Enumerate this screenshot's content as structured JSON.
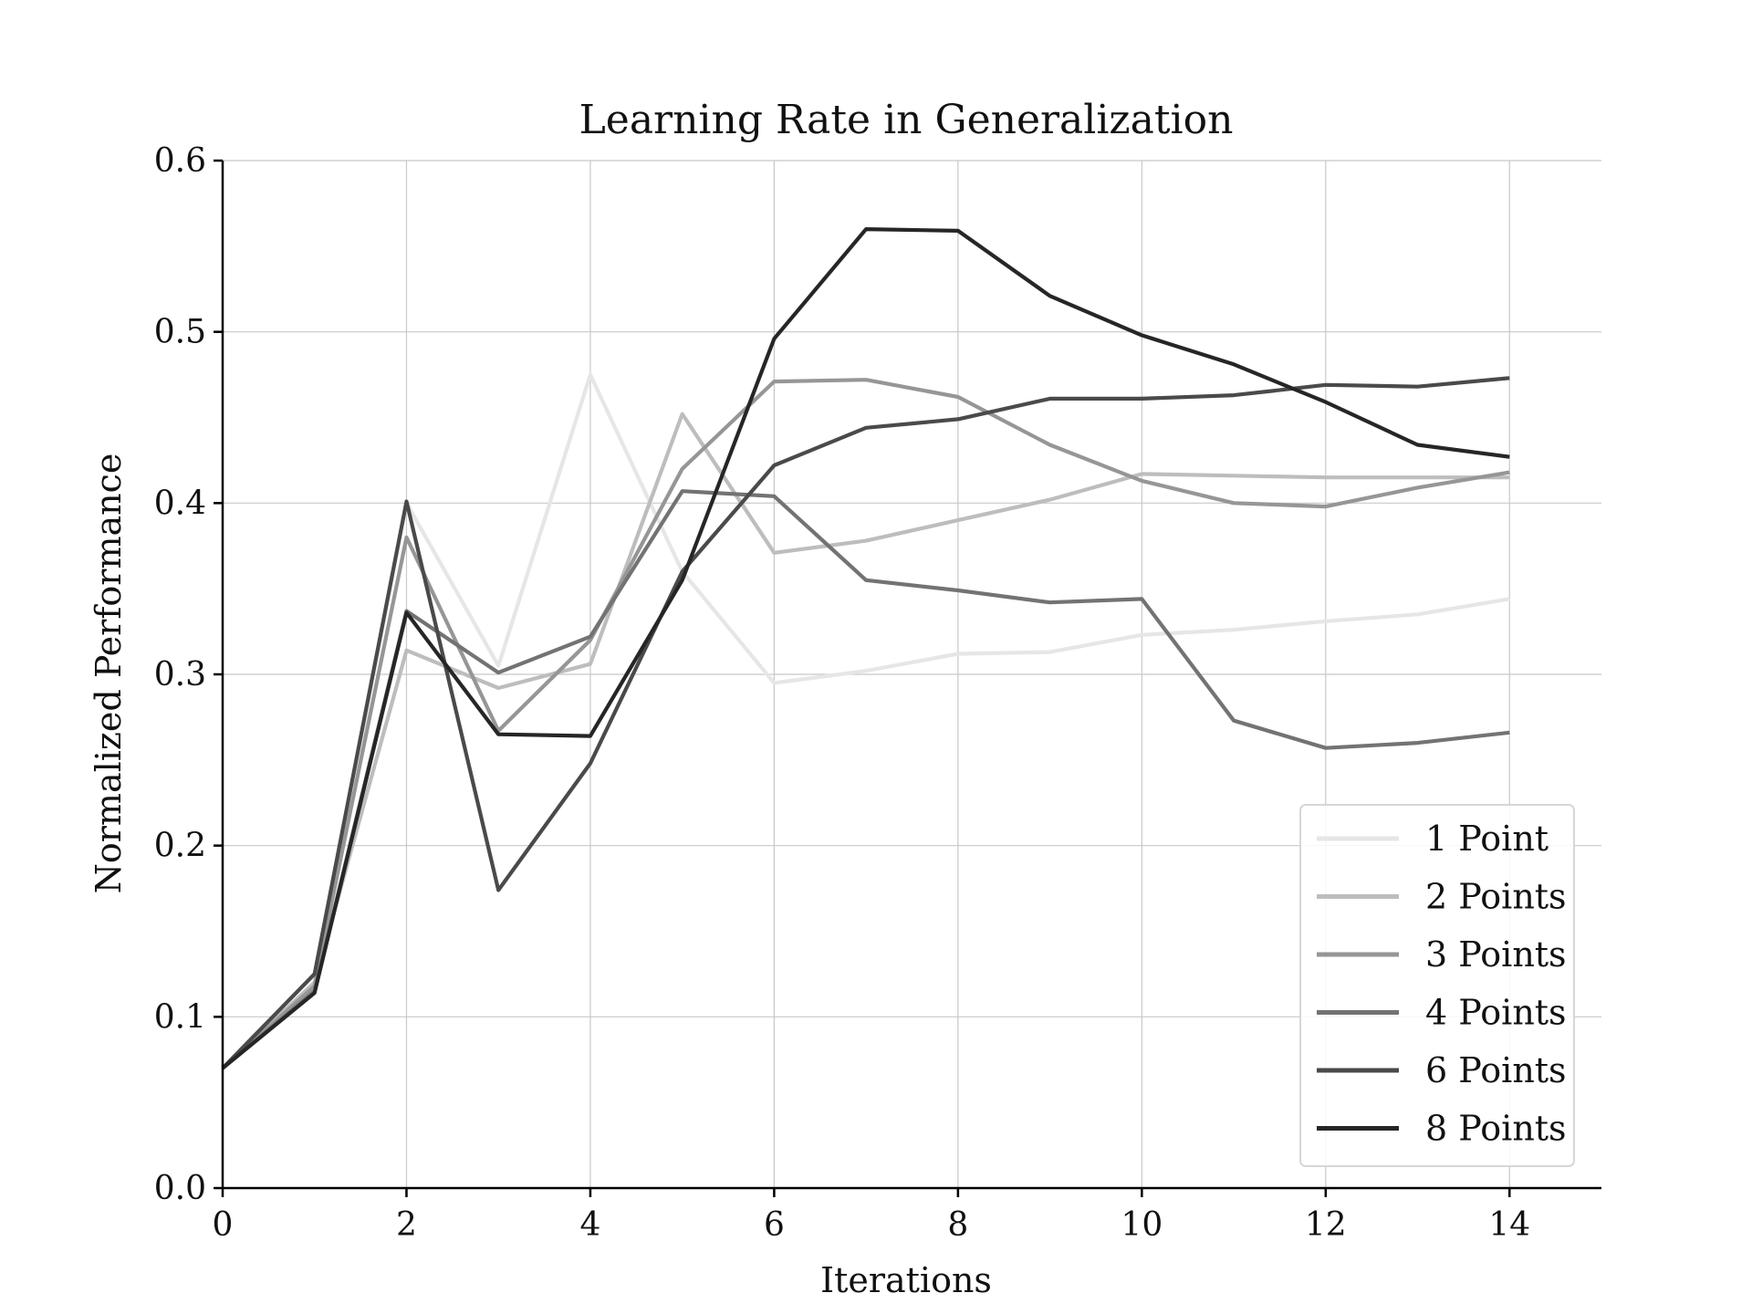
{
  "chart_data": {
    "type": "line",
    "title": "Learning Rate in Generalization",
    "xlabel": "Iterations",
    "ylabel": "Normalized Performance",
    "xlim": [
      0,
      15
    ],
    "ylim": [
      0,
      0.6
    ],
    "xticks": [
      0,
      2,
      4,
      6,
      8,
      10,
      12,
      14
    ],
    "yticks": [
      0.0,
      0.1,
      0.2,
      0.3,
      0.4,
      0.5,
      0.6
    ],
    "xtick_labels": [
      "0",
      "2",
      "4",
      "6",
      "8",
      "10",
      "12",
      "14"
    ],
    "ytick_labels": [
      "0.0",
      "0.1",
      "0.2",
      "0.3",
      "0.4",
      "0.5",
      "0.6"
    ],
    "grid": true,
    "legend_position": "bottom-right",
    "x": [
      0,
      1,
      2,
      3,
      4,
      5,
      6,
      7,
      8,
      9,
      10,
      11,
      12,
      13,
      14
    ],
    "series": [
      {
        "name": "1 Point",
        "color": "#e6e6e6",
        "values": [
          0.07,
          0.12,
          0.4,
          0.305,
          0.475,
          0.36,
          0.295,
          0.302,
          0.312,
          0.313,
          0.323,
          0.326,
          0.331,
          0.335,
          0.344
        ]
      },
      {
        "name": "2 Points",
        "color": "#bdbdbd",
        "values": [
          0.07,
          0.12,
          0.314,
          0.292,
          0.306,
          0.452,
          0.371,
          0.378,
          0.39,
          0.402,
          0.417,
          0.416,
          0.415,
          0.415,
          0.415
        ]
      },
      {
        "name": "3 Points",
        "color": "#969696",
        "values": [
          0.07,
          0.118,
          0.38,
          0.267,
          0.32,
          0.42,
          0.471,
          0.472,
          0.462,
          0.434,
          0.413,
          0.4,
          0.398,
          0.409,
          0.418
        ]
      },
      {
        "name": "4 Points",
        "color": "#737373",
        "values": [
          0.07,
          0.115,
          0.337,
          0.301,
          0.322,
          0.407,
          0.404,
          0.355,
          0.349,
          0.342,
          0.344,
          0.273,
          0.257,
          0.26,
          0.266
        ]
      },
      {
        "name": "6 Points",
        "color": "#4a4a4a",
        "values": [
          0.07,
          0.125,
          0.401,
          0.174,
          0.248,
          0.36,
          0.422,
          0.444,
          0.449,
          0.461,
          0.461,
          0.463,
          0.469,
          0.468,
          0.473
        ]
      },
      {
        "name": "8 Points",
        "color": "#262626",
        "values": [
          0.07,
          0.114,
          0.336,
          0.265,
          0.264,
          0.355,
          0.496,
          0.56,
          0.559,
          0.521,
          0.498,
          0.481,
          0.459,
          0.434,
          0.427
        ]
      }
    ]
  }
}
